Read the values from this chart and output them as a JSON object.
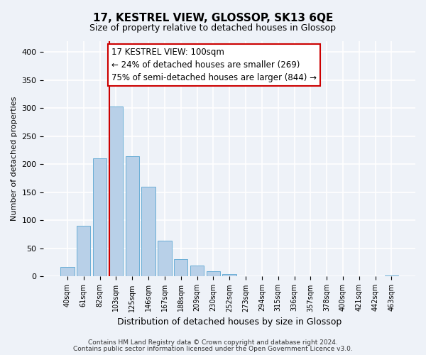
{
  "title": "17, KESTREL VIEW, GLOSSOP, SK13 6QE",
  "subtitle": "Size of property relative to detached houses in Glossop",
  "xlabel": "Distribution of detached houses by size in Glossop",
  "ylabel": "Number of detached properties",
  "bar_values": [
    17,
    90,
    211,
    303,
    215,
    160,
    64,
    31,
    20,
    10,
    4,
    0,
    0,
    0,
    1,
    0,
    0,
    0,
    0,
    0,
    2
  ],
  "bin_labels": [
    "40sqm",
    "61sqm",
    "82sqm",
    "103sqm",
    "125sqm",
    "146sqm",
    "167sqm",
    "188sqm",
    "209sqm",
    "230sqm",
    "252sqm",
    "273sqm",
    "294sqm",
    "315sqm",
    "336sqm",
    "357sqm",
    "378sqm",
    "400sqm",
    "421sqm",
    "442sqm",
    "463sqm"
  ],
  "bar_color": "#b8d0e8",
  "bar_edge_color": "#6aaed6",
  "vline_x_index": 3,
  "vline_color": "#cc0000",
  "annotation_line1": "17 KESTREL VIEW: 100sqm",
  "annotation_line2": "← 24% of detached houses are smaller (269)",
  "annotation_line3": "75% of semi-detached houses are larger (844) →",
  "annotation_box_color": "#ffffff",
  "annotation_box_edge": "#cc0000",
  "ylim": [
    0,
    420
  ],
  "yticks": [
    0,
    50,
    100,
    150,
    200,
    250,
    300,
    350,
    400
  ],
  "footnote1": "Contains HM Land Registry data © Crown copyright and database right 2024.",
  "footnote2": "Contains public sector information licensed under the Open Government Licence v3.0.",
  "bg_color": "#eef2f8",
  "grid_color": "#ffffff",
  "title_fontsize": 11,
  "subtitle_fontsize": 9
}
